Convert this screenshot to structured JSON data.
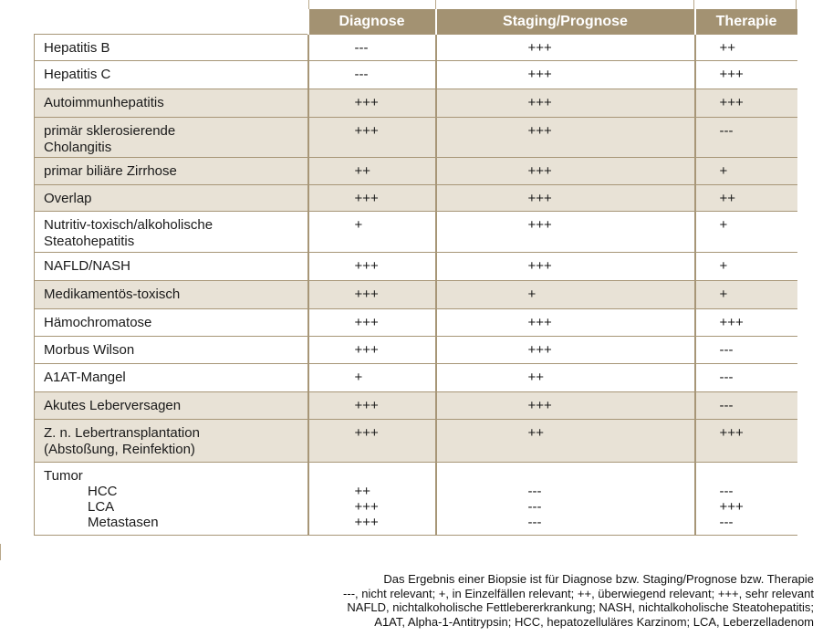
{
  "table": {
    "headers": [
      "",
      "Diagnose",
      "Staging/Prognose",
      "Therapie"
    ],
    "rows": [
      {
        "name": [
          "Hepatitis B"
        ],
        "diagnose": "---",
        "staging": "+++",
        "therapie": "++",
        "shaded": false
      },
      {
        "name": [
          "Hepatitis C"
        ],
        "diagnose": "---",
        "staging": "+++",
        "therapie": "+++",
        "shaded": false
      },
      {
        "name": [
          "Autoimmunhepatitis"
        ],
        "diagnose": "+++",
        "staging": "+++",
        "therapie": "+++",
        "shaded": true
      },
      {
        "name": [
          "primär sklerosierende",
          "Cholangitis"
        ],
        "diagnose": "+++",
        "staging": "+++",
        "therapie": "---",
        "shaded": true
      },
      {
        "name": [
          "primar biliäre Zirrhose"
        ],
        "diagnose": "++",
        "staging": "+++",
        "therapie": "+",
        "shaded": true
      },
      {
        "name": [
          "Overlap"
        ],
        "diagnose": "+++",
        "staging": "+++",
        "therapie": "++",
        "shaded": true
      },
      {
        "name": [
          "Nutritiv-toxisch/alkoholische",
          "Steatohepatitis"
        ],
        "diagnose": "+",
        "staging": "+++",
        "therapie": "+",
        "shaded": false
      },
      {
        "name": [
          "NAFLD/NASH"
        ],
        "diagnose": "+++",
        "staging": "+++",
        "therapie": "+",
        "shaded": false
      },
      {
        "name": [
          "Medikamentös-toxisch"
        ],
        "diagnose": "+++",
        "staging": "+",
        "therapie": "+",
        "shaded": true
      },
      {
        "name": [
          "Hämochromatose"
        ],
        "diagnose": "+++",
        "staging": "+++",
        "therapie": "+++",
        "shaded": false
      },
      {
        "name": [
          "Morbus Wilson"
        ],
        "diagnose": "+++",
        "staging": "+++",
        "therapie": "---",
        "shaded": false
      },
      {
        "name": [
          "A1AT-Mangel"
        ],
        "diagnose": "+",
        "staging": "++",
        "therapie": "---",
        "shaded": false
      },
      {
        "name": [
          "Akutes Leberversagen"
        ],
        "diagnose": "+++",
        "staging": "+++",
        "therapie": "---",
        "shaded": true
      },
      {
        "name": [
          "Z. n. Lebertransplantation",
          "(Abstoßung, Reinfektion)"
        ],
        "diagnose": "+++",
        "staging": "++",
        "therapie": "+++",
        "shaded": true
      }
    ],
    "tumor": {
      "label": "Tumor",
      "subs": [
        {
          "name": "HCC",
          "diagnose": "++",
          "staging": "---",
          "therapie": "---"
        },
        {
          "name": "LCA",
          "diagnose": "+++",
          "staging": "---",
          "therapie": "+++"
        },
        {
          "name": "Metastasen",
          "diagnose": "+++",
          "staging": "---",
          "therapie": "---"
        }
      ]
    }
  },
  "footnote": [
    "Das Ergebnis einer Biopsie ist für Diagnose bzw. Staging/Prognose bzw. Therapie",
    "---, nicht relevant; +, in Einzelfällen relevant; ++, überwiegend relevant; +++, sehr relevant",
    "NAFLD, nichtalkoholische Fettlebererkrankung; NASH, nichtalkoholische Steatohepatitis;",
    "A1AT, Alpha-1-Antitrypsin; HCC, hepatozelluläres Karzinom; LCA, Leberzelladenom"
  ],
  "colors": {
    "header_bg": "#a39272",
    "shaded_row": "#e8e2d6",
    "grid": "#a79677"
  }
}
